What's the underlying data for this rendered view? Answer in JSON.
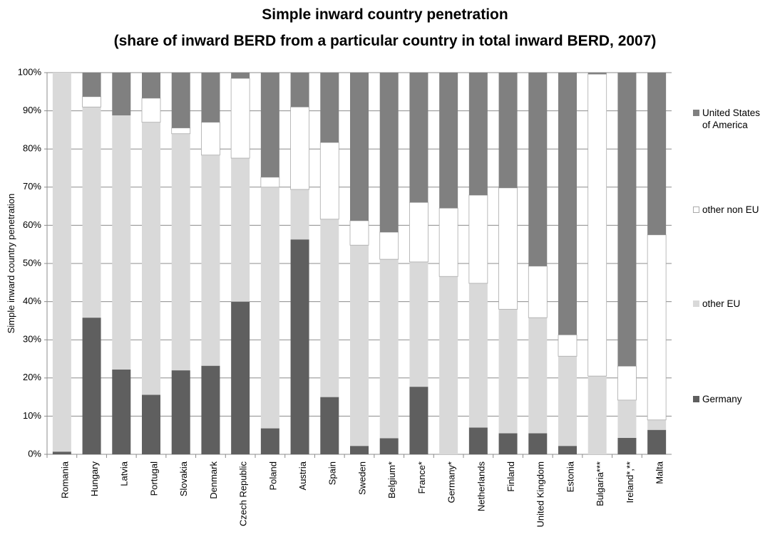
{
  "chart_data": {
    "type": "stacked_bar",
    "title": "Simple inward country penetration",
    "subtitle": "(share of inward BERD from a particular country in total inward BERD, 2007)",
    "y_label": "Simple inward country penetration",
    "categories": [
      "Romania",
      "Hungary",
      "Latvia",
      "Portugal",
      "Slovakia",
      "Denmark",
      "Czech Republic",
      "Poland",
      "Austria",
      "Spain",
      "Sweden",
      "Belgium*",
      "France*",
      "Germany*",
      "Netherlands",
      "Finland",
      "United Kingdom",
      "Estonia",
      "Bulgaria***",
      "Ireland*,**",
      "Malta"
    ],
    "series": [
      {
        "name": "Germany",
        "color": "#5f5f5f",
        "values": [
          0.7,
          35.8,
          22.2,
          15.6,
          22,
          23.2,
          40,
          6.8,
          56.3,
          15,
          2.2,
          4.2,
          17.7,
          0,
          7,
          5.5,
          5.5,
          2.2,
          0,
          4.3,
          6.4
        ]
      },
      {
        "name": "other EU",
        "color": "#d9d9d9",
        "values": [
          99.3,
          55.2,
          66.6,
          71.4,
          62,
          55.2,
          37.6,
          63.2,
          13.1,
          46.6,
          52.6,
          46.9,
          32.7,
          46.6,
          37.8,
          32.5,
          30.3,
          23.5,
          20.5,
          9.9,
          2.6
        ]
      },
      {
        "name": "other non EU",
        "color": "#ffffff",
        "values": [
          0,
          2.7,
          0,
          6.3,
          1.5,
          8.6,
          20.9,
          2.6,
          21.6,
          20.1,
          6.4,
          7.1,
          15.6,
          17.9,
          23.1,
          31.8,
          13.5,
          5.6,
          79.1,
          8.9,
          48.5
        ]
      },
      {
        "name": "United States of America",
        "color": "#808080",
        "values": [
          0,
          6.3,
          11.2,
          6.7,
          14.5,
          13,
          1.5,
          27.4,
          9,
          18.3,
          38.8,
          41.8,
          34,
          35.5,
          32.1,
          30.2,
          50.7,
          68.7,
          0.4,
          76.9,
          42.5
        ]
      }
    ],
    "ylim": [
      0,
      100
    ],
    "yticks": [
      {
        "value": 0,
        "label": "0%"
      },
      {
        "value": 10,
        "label": "10%"
      },
      {
        "value": 20,
        "label": "20%"
      },
      {
        "value": 30,
        "label": "30%"
      },
      {
        "value": 40,
        "label": "40%"
      },
      {
        "value": 50,
        "label": "50%"
      },
      {
        "value": 60,
        "label": "60%"
      },
      {
        "value": 70,
        "label": "70%"
      },
      {
        "value": 80,
        "label": "80%"
      },
      {
        "value": 90,
        "label": "90%"
      },
      {
        "value": 100,
        "label": "100%"
      }
    ],
    "grid": true,
    "legend": "right"
  }
}
